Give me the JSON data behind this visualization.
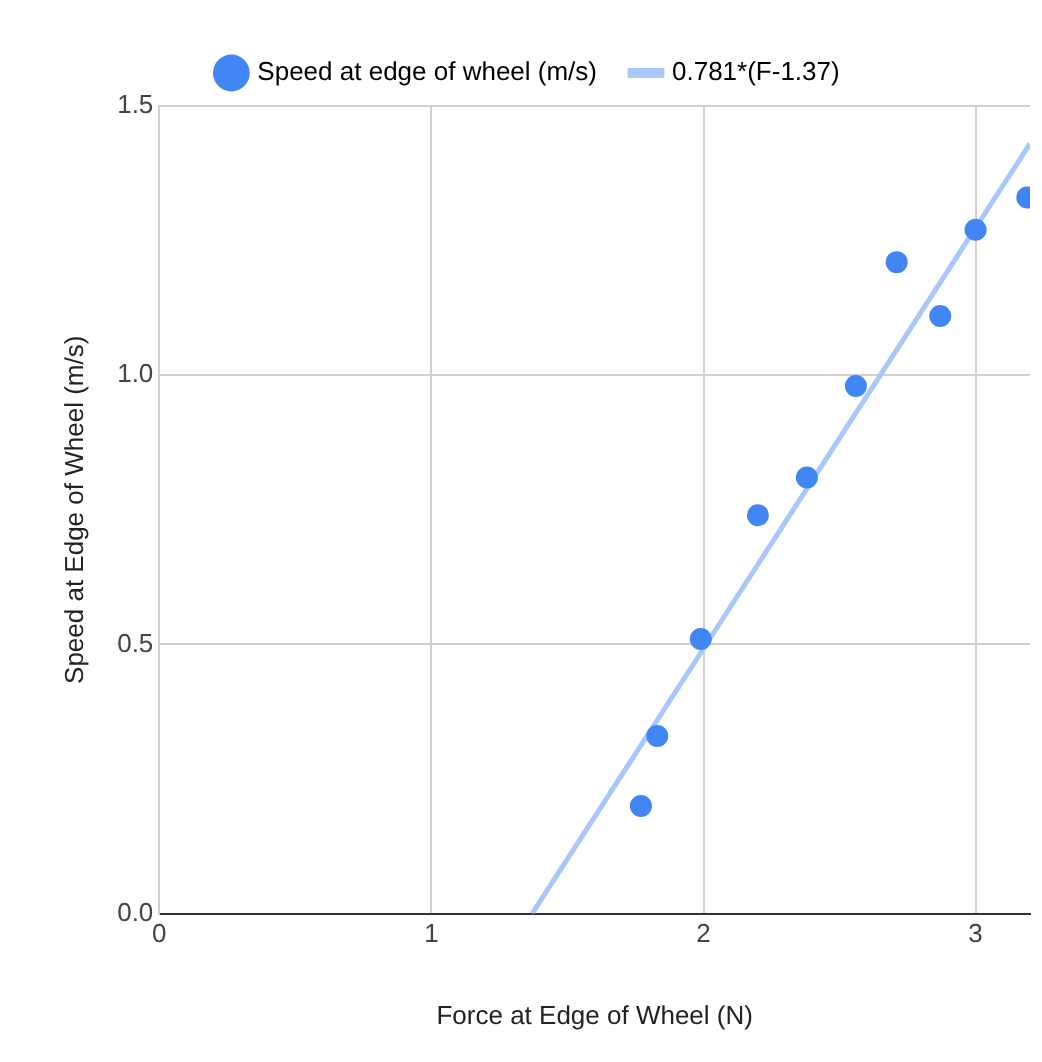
{
  "chart_data": {
    "type": "scatter",
    "xlabel": "Force at Edge of Wheel (N)",
    "ylabel": "Speed at Edge of Wheel (m/s)",
    "xlim": [
      0,
      3.2
    ],
    "xticks": [
      0,
      1,
      2,
      3
    ],
    "ylim": [
      0,
      1.5
    ],
    "yticks": [
      {
        "value": 0,
        "label": "0.0"
      },
      {
        "value": 0.5,
        "label": "0.5"
      },
      {
        "value": 1,
        "label": "1.0"
      },
      {
        "value": 1.5,
        "label": "1.5"
      }
    ],
    "grid": true,
    "legend": "top",
    "marker": "circle",
    "series": [
      {
        "name": "Speed at edge of wheel (m/s)",
        "color": "#4285f4",
        "x": [
          1.77,
          1.83,
          1.99,
          2.2,
          2.38,
          2.56,
          2.71,
          2.87,
          3.0,
          3.19
        ],
        "values": [
          0.2,
          0.33,
          0.51,
          0.74,
          0.81,
          0.98,
          1.21,
          1.11,
          1.27,
          1.33
        ]
      },
      {
        "name": "0.781*(F-1.37)",
        "type": "line",
        "marker": "none",
        "color": "#a8c7fa",
        "x": [
          1.37,
          3.2
        ],
        "values": [
          0,
          1.43
        ]
      }
    ]
  }
}
